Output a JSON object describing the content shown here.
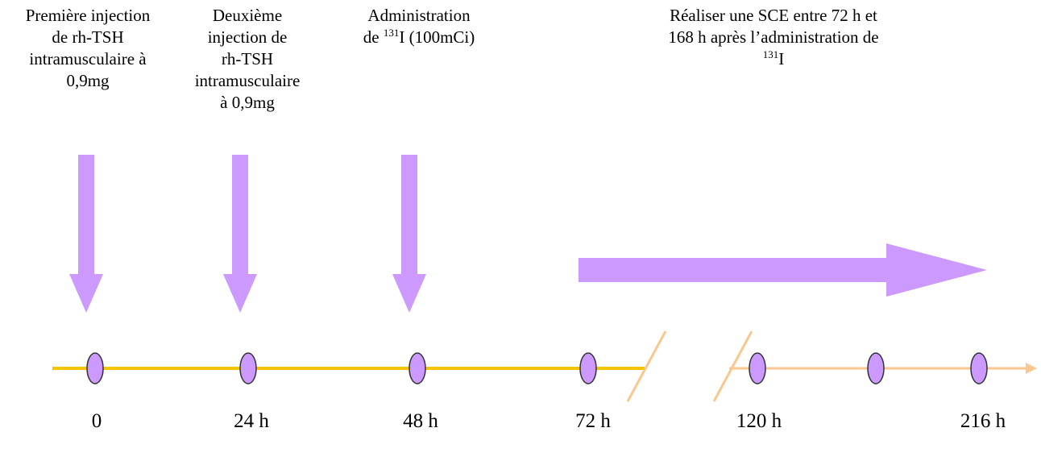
{
  "steps": [
    {
      "lines": [
        "Première injection",
        "de rh-TSH",
        "intramusculaire à",
        "0,9mg"
      ]
    },
    {
      "lines": [
        "Deuxième",
        "injection de",
        "rh-TSH",
        "intramusculaire",
        "à 0,9mg"
      ]
    },
    {
      "lines_rich": [
        [
          "Administration",
          "",
          ""
        ],
        [
          "de ",
          "131",
          "I (100mCi)"
        ]
      ]
    },
    {
      "lines_rich": [
        [
          "Réaliser une SCE entre 72 h et",
          "",
          ""
        ],
        [
          "168 h après l’administration de",
          "",
          ""
        ],
        [
          "",
          "131",
          "I"
        ]
      ]
    }
  ],
  "timeline": {
    "ticks": [
      "0",
      "24 h",
      "48 h",
      "72 h",
      "120 h",
      "216 h"
    ],
    "colors": {
      "solid_line": "#f5c400",
      "dashed_line": "#f9c78f",
      "arrow_fill": "#cc99ff",
      "marker_fill": "#cc99ff",
      "marker_stroke": "#333333"
    }
  }
}
